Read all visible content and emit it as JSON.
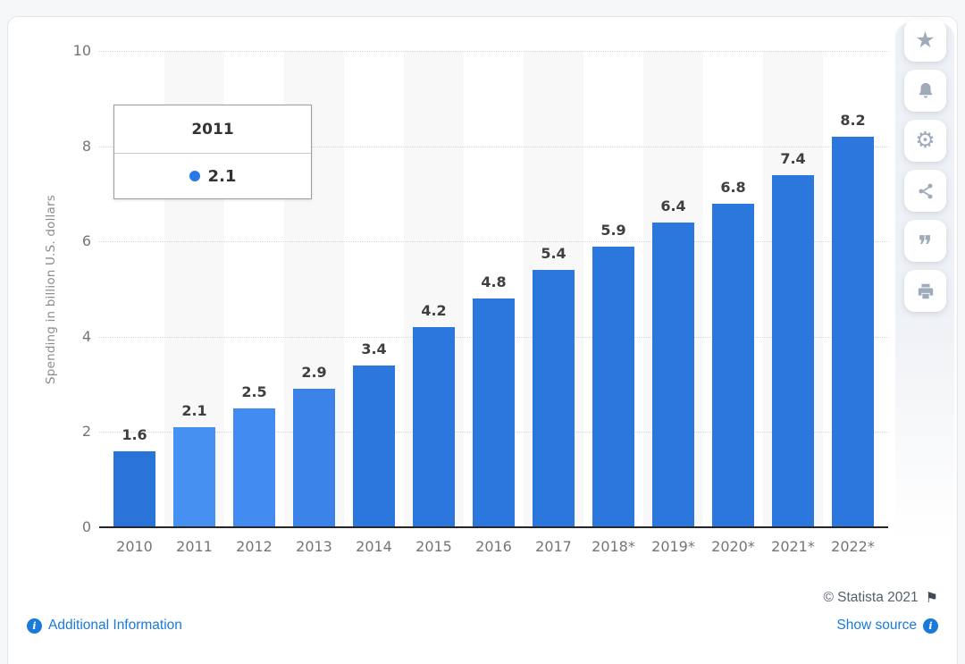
{
  "page": {
    "background": "#f6f7f9",
    "card_background": "#ffffff"
  },
  "chart_data": {
    "type": "bar",
    "title": "",
    "categories": [
      "2010",
      "2011",
      "2012",
      "2013",
      "2014",
      "2015",
      "2016",
      "2017",
      "2018*",
      "2019*",
      "2020*",
      "2021*",
      "2022*"
    ],
    "values": [
      1.6,
      2.1,
      2.5,
      2.9,
      3.4,
      4.2,
      4.8,
      5.4,
      5.9,
      6.4,
      6.8,
      7.4,
      8.2
    ],
    "xlabel": "",
    "ylabel": "Spending in billion U.S. dollars",
    "ylim": [
      0,
      10
    ],
    "yticks": [
      0,
      2,
      4,
      6,
      8,
      10
    ],
    "grid": "horizontal-dotted",
    "legend_position": "none",
    "bar_default_color": "#2b77dd",
    "bar_colors": [
      "#2a73d9",
      "#4690f2",
      "#428bf0",
      "#3b83e9",
      "#2b77dd",
      "#2b77dd",
      "#2b77dd",
      "#2b77dd",
      "#2b77dd",
      "#2b77dd",
      "#2b77dd",
      "#2b77dd",
      "#2b77dd"
    ],
    "band_color": "#f8f8f9",
    "value_label_color": "#3f3f3f",
    "tick_color": "#757575",
    "gridline_color": "#d5d5d5",
    "axis_line_color": "#262626"
  },
  "tooltip": {
    "title": "2011",
    "value": "2.1",
    "marker_color": "#2878e8"
  },
  "toolbar": {
    "icons": [
      "star-icon",
      "bell-icon",
      "gear-icon",
      "share-icon",
      "quote-icon",
      "print-icon"
    ]
  },
  "footer": {
    "copyright": "© Statista 2021",
    "additional_info_label": "Additional Information",
    "show_source_label": "Show source",
    "link_color": "#1a7ad9",
    "copyright_color": "#53606f"
  }
}
